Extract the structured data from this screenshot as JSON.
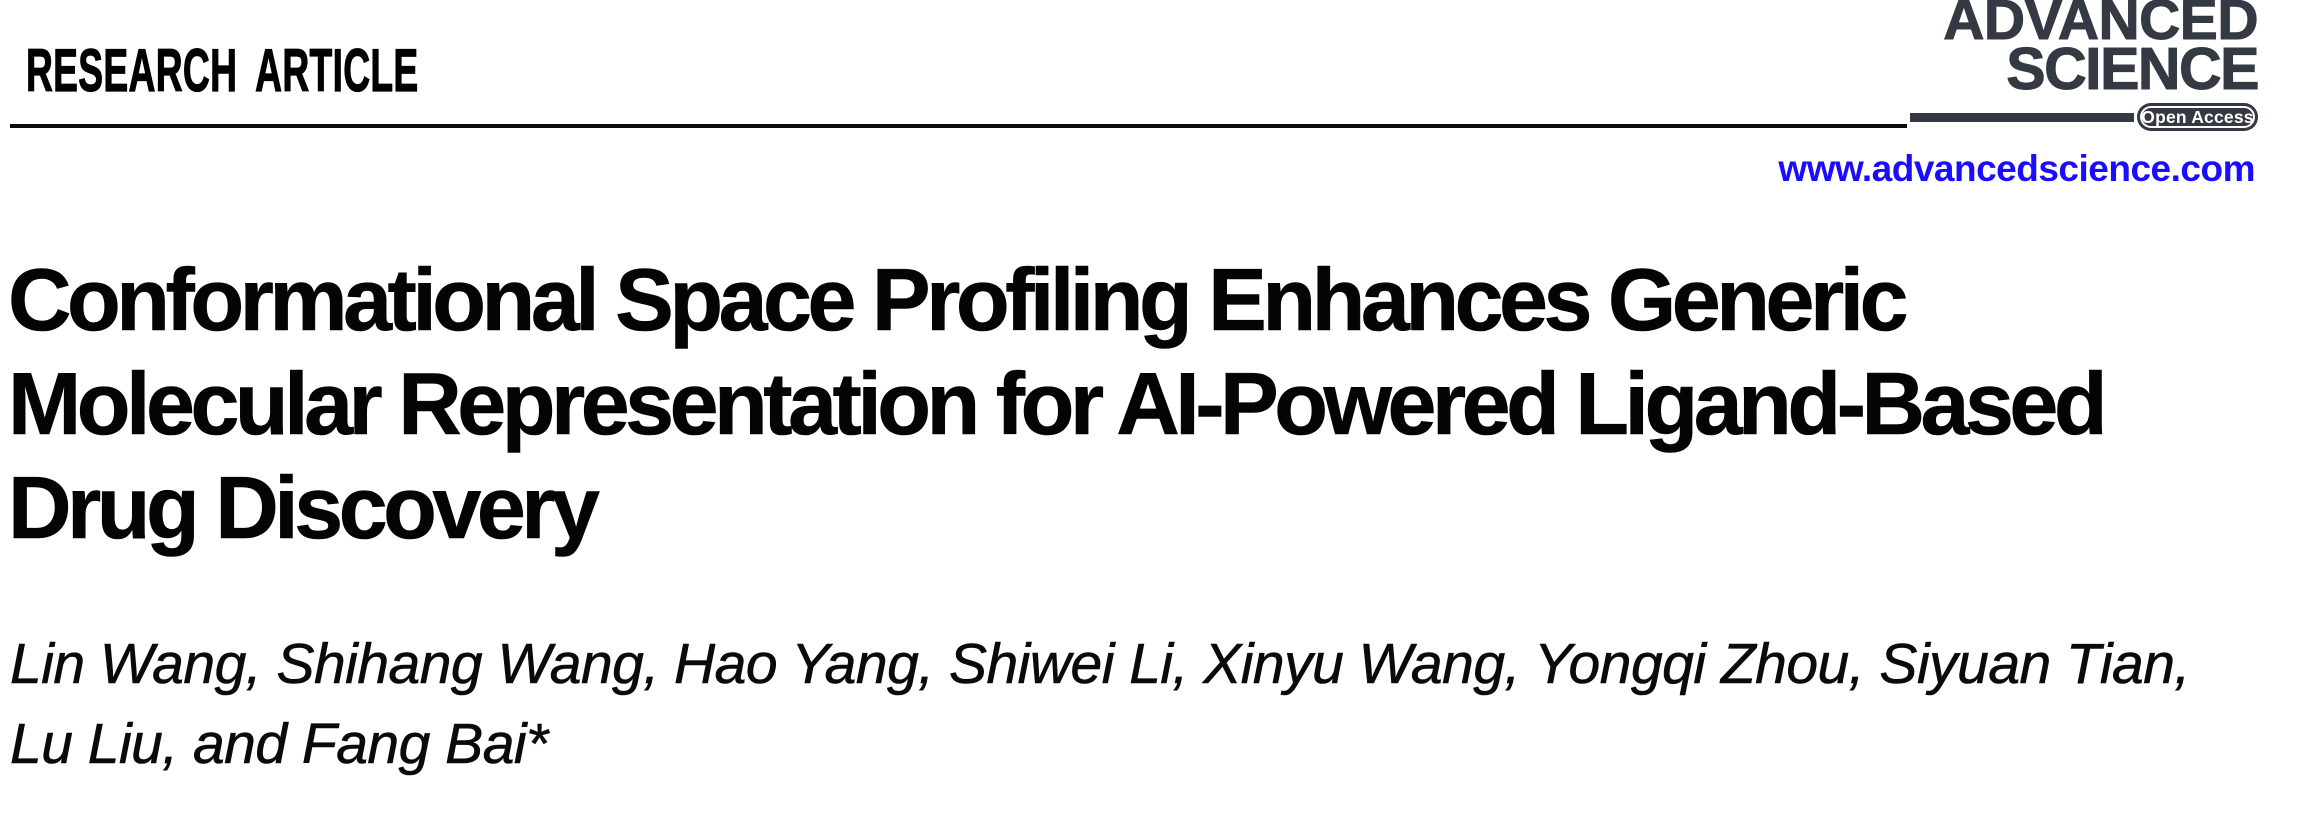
{
  "page": {
    "kicker": "RESEARCH ARTICLE",
    "journal": {
      "wordmark_line1": "ADVANCED",
      "wordmark_line2": "SCIENCE",
      "open_access_badge": "Open Access",
      "website": "www.advancedscience.com"
    },
    "article": {
      "title_lines": [
        "Conformational Space Profiling Enhances Generic",
        "Molecular Representation for AI-Powered Ligand-Based",
        "Drug Discovery"
      ],
      "author_lines": [
        "Lin Wang, Shihang Wang, Hao Yang, Shiwei Li, Xinyu Wang, Yongqi Zhou, Siyuan Tian,",
        "Lu Liu, and Fang Bai*"
      ]
    }
  },
  "colors": {
    "logo-ink": "#343943",
    "link-blue": "#1a0dff",
    "text-ink": "#000000"
  }
}
